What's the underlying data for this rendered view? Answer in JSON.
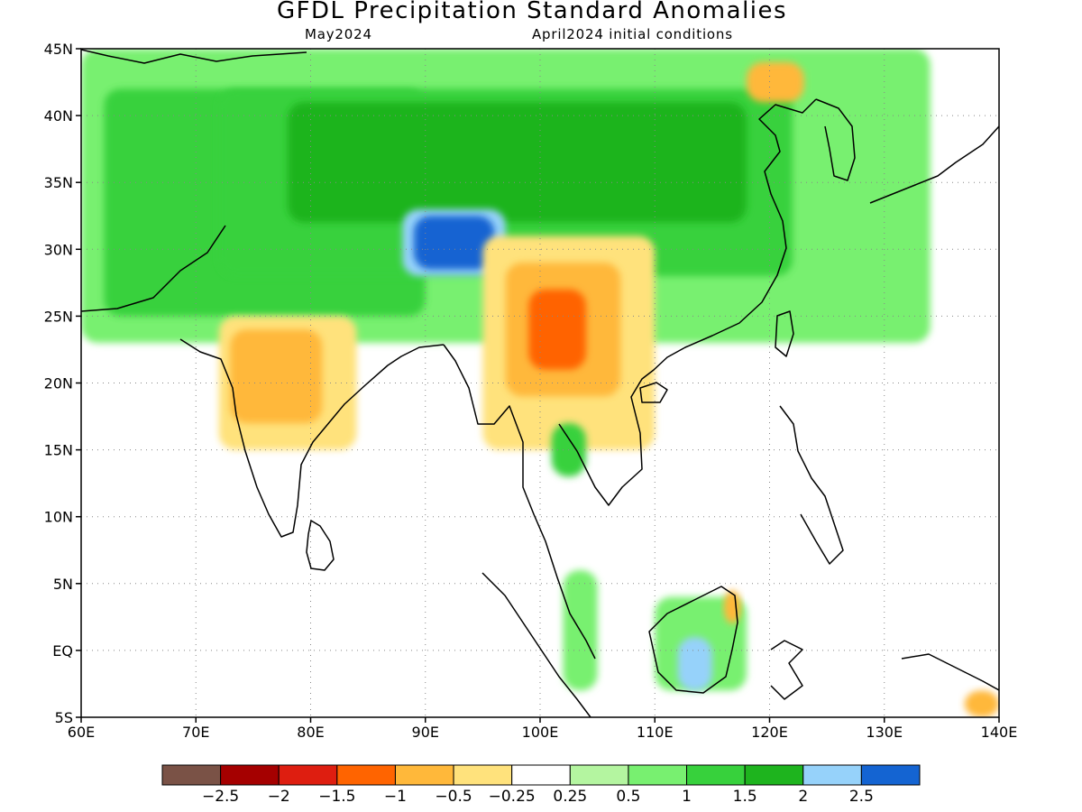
{
  "title": "GFDL Precipitation Standard Anomalies",
  "valid_month": "May2024",
  "initial_conditions": "April2024 initial conditions",
  "map": {
    "lon_range": [
      60,
      140
    ],
    "lat_range": [
      -5,
      45
    ],
    "lon_ticks": [
      {
        "value": 60,
        "label": "60E"
      },
      {
        "value": 70,
        "label": "70E"
      },
      {
        "value": 80,
        "label": "80E"
      },
      {
        "value": 90,
        "label": "90E"
      },
      {
        "value": 100,
        "label": "100E"
      },
      {
        "value": 110,
        "label": "110E"
      },
      {
        "value": 120,
        "label": "120E"
      },
      {
        "value": 130,
        "label": "130E"
      },
      {
        "value": 140,
        "label": "140E"
      }
    ],
    "lat_ticks": [
      {
        "value": 45,
        "label": "45N"
      },
      {
        "value": 40,
        "label": "40N"
      },
      {
        "value": 35,
        "label": "35N"
      },
      {
        "value": 30,
        "label": "30N"
      },
      {
        "value": 25,
        "label": "25N"
      },
      {
        "value": 20,
        "label": "20N"
      },
      {
        "value": 15,
        "label": "15N"
      },
      {
        "value": 10,
        "label": "10N"
      },
      {
        "value": 5,
        "label": "5N"
      },
      {
        "value": 0,
        "label": "EQ"
      },
      {
        "value": -5,
        "label": "5S"
      }
    ],
    "gridlines": "dotted"
  },
  "legend": {
    "colors": [
      "#7a5246",
      "#a50000",
      "#de1e10",
      "#ff6400",
      "#ffb83a",
      "#ffe27c",
      "#ffffff",
      "#b4f5a0",
      "#78f070",
      "#37d13c",
      "#1eb41e",
      "#96d2fa",
      "#1464d2"
    ],
    "labels": [
      "-2.5",
      "-2",
      "-1.5",
      "-1",
      "-0.5",
      "-0.25",
      "0.25",
      "0.5",
      "1",
      "1.5",
      "2",
      "2.5"
    ]
  },
  "anomaly_regions": [
    {
      "level": "1",
      "color": "#78f070",
      "lon": [
        60,
        134
      ],
      "lat": [
        23,
        45
      ]
    },
    {
      "level": "1.5",
      "color": "#37d13c",
      "lon": [
        62,
        90
      ],
      "lat": [
        25,
        42
      ]
    },
    {
      "level": "1.5",
      "color": "#37d13c",
      "lon": [
        72,
        122
      ],
      "lat": [
        28,
        42
      ]
    },
    {
      "level": "2",
      "color": "#1eb41e",
      "lon": [
        78,
        118
      ],
      "lat": [
        32,
        41
      ]
    },
    {
      "level": "2.5",
      "color": "#96d2fa",
      "lon": [
        88,
        97
      ],
      "lat": [
        28,
        33
      ]
    },
    {
      "level": "2.5+",
      "color": "#1464d2",
      "lon": [
        89,
        96
      ],
      "lat": [
        28.5,
        32.5
      ]
    },
    {
      "level": "-0.25",
      "color": "#ffe27c",
      "lon": [
        72,
        84
      ],
      "lat": [
        15,
        25
      ]
    },
    {
      "level": "-0.5",
      "color": "#ffb83a",
      "lon": [
        73,
        81
      ],
      "lat": [
        17,
        24
      ]
    },
    {
      "level": "-0.25",
      "color": "#ffe27c",
      "lon": [
        95,
        110
      ],
      "lat": [
        15,
        31
      ]
    },
    {
      "level": "-0.5",
      "color": "#ffb83a",
      "lon": [
        97,
        107
      ],
      "lat": [
        19,
        29
      ]
    },
    {
      "level": "-1",
      "color": "#ff6400",
      "lon": [
        99,
        104
      ],
      "lat": [
        21,
        27
      ]
    },
    {
      "level": "-0.5",
      "color": "#ffb83a",
      "lon": [
        118,
        123
      ],
      "lat": [
        41,
        44
      ]
    },
    {
      "level": "1",
      "color": "#78f070",
      "lon": [
        110,
        118
      ],
      "lat": [
        -3,
        4
      ]
    },
    {
      "level": "2.5",
      "color": "#96d2fa",
      "lon": [
        112,
        115
      ],
      "lat": [
        -3,
        1
      ]
    },
    {
      "level": "-0.5",
      "color": "#ffb83a",
      "lon": [
        116,
        117.5
      ],
      "lat": [
        2,
        4.5
      ]
    },
    {
      "level": "1",
      "color": "#78f070",
      "lon": [
        102,
        105
      ],
      "lat": [
        -3,
        6
      ]
    },
    {
      "level": "1.5",
      "color": "#37d13c",
      "lon": [
        101,
        104
      ],
      "lat": [
        13,
        17
      ]
    },
    {
      "level": "-0.5",
      "color": "#ffb83a",
      "lon": [
        137,
        140
      ],
      "lat": [
        -5,
        -3
      ]
    }
  ]
}
